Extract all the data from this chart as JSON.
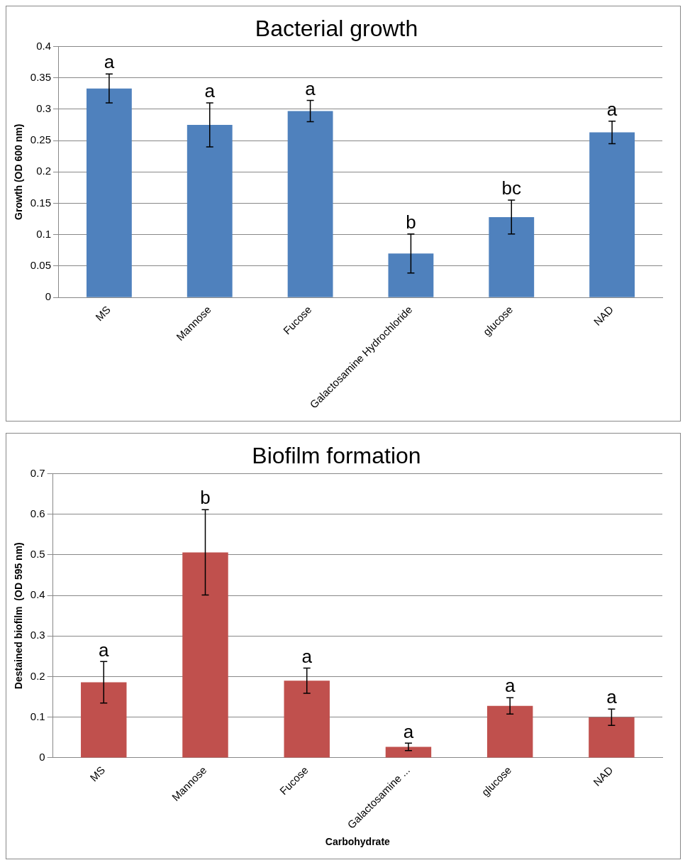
{
  "chart_data": [
    {
      "type": "bar",
      "title": "Bacterial growth",
      "ylabel": "Growth (OD 600 nm)",
      "categories": [
        "MS",
        "Mannose",
        "Fucose",
        "Galactosamine Hydrochloride",
        "glucose",
        "NAD"
      ],
      "series": [
        {
          "color": "#4f81bd",
          "values": [
            0.333,
            0.275,
            0.297,
            0.07,
            0.128,
            0.263
          ],
          "errors": [
            0.023,
            0.035,
            0.017,
            0.031,
            0.027,
            0.018
          ]
        }
      ],
      "ylim": [
        0,
        0.4
      ],
      "yticks": [
        0,
        {
          "value": 0.05,
          "label": "0.05"
        },
        {
          "value": 0.1,
          "label": "0.1"
        },
        {
          "value": 0.15,
          "label": "0.15"
        },
        {
          "value": 0.2,
          "label": "0.2"
        },
        {
          "value": 0.25,
          "label": "0.25"
        },
        {
          "value": 0.3,
          "label": "0.3"
        },
        {
          "value": 0.35,
          "label": "0.35"
        },
        {
          "value": 0.4,
          "label": "0.4"
        }
      ],
      "grid": "y",
      "legend": false,
      "annotations": [
        {
          "text": "a",
          "x": "MS",
          "y": 0.356
        },
        {
          "text": "a",
          "x": "Mannose",
          "y": 0.31
        },
        {
          "text": "a",
          "x": "Fucose",
          "y": 0.314
        },
        {
          "text": "b",
          "x": "Galactosamine Hydrochloride",
          "y": 0.101
        },
        {
          "text": "bc",
          "x": "glucose",
          "y": 0.155
        },
        {
          "text": "a",
          "x": "NAD",
          "y": 0.281
        }
      ]
    },
    {
      "type": "bar",
      "title": "Biofilm formation",
      "ylabel": "Destained biofilm  (OD 595 nm)",
      "xlabel": "Carbohydrate",
      "categories": [
        "MS",
        "Mannose",
        "Fucose",
        "Galactosamine ...",
        "glucose",
        "NAD"
      ],
      "series": [
        {
          "color": "#c0504d",
          "values": [
            0.186,
            0.506,
            0.19,
            0.027,
            0.128,
            0.1
          ],
          "errors": [
            0.051,
            0.105,
            0.031,
            0.009,
            0.02,
            0.02
          ]
        }
      ],
      "ylim": [
        0,
        0.7
      ],
      "yticks": [
        0,
        {
          "value": 0.1,
          "label": "0.1"
        },
        {
          "value": 0.2,
          "label": "0.2"
        },
        {
          "value": 0.3,
          "label": "0.3"
        },
        {
          "value": 0.4,
          "label": "0.4"
        },
        {
          "value": 0.5,
          "label": "0.5"
        },
        {
          "value": 0.6,
          "label": "0.6"
        },
        {
          "value": 0.7,
          "label": "0.7"
        }
      ],
      "grid": "y",
      "legend": false,
      "annotations": [
        {
          "text": "a",
          "x": "MS",
          "y": 0.237
        },
        {
          "text": "b",
          "x": "Mannose",
          "y": 0.611
        },
        {
          "text": "a",
          "x": "Fucose",
          "y": 0.221
        },
        {
          "text": "a",
          "x": "Galactosamine ...",
          "y": 0.036
        },
        {
          "text": "a",
          "x": "glucose",
          "y": 0.148
        },
        {
          "text": "a",
          "x": "NAD",
          "y": 0.12
        }
      ]
    }
  ]
}
